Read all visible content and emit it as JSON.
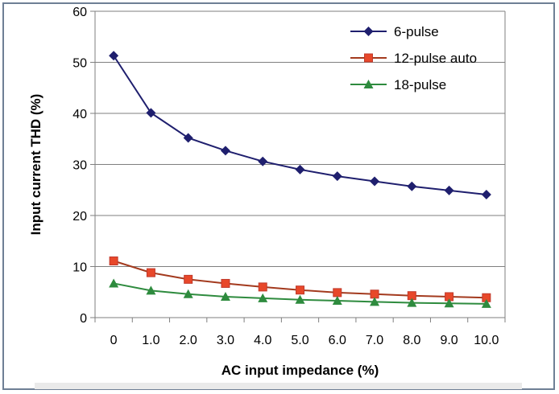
{
  "chart_data": {
    "type": "line",
    "xlabel": "AC input impedance (%)",
    "ylabel": "Input current THD (%)",
    "ylim": [
      0,
      60
    ],
    "yticks": [
      "0",
      "10",
      "20",
      "30",
      "40",
      "50",
      "60"
    ],
    "categories": [
      "0",
      "1.0",
      "2.0",
      "3.0",
      "4.0",
      "5.0",
      "6.0",
      "7.0",
      "8.0",
      "9.0",
      "10.0"
    ],
    "grid": "horizontal",
    "legend_position": "top-right",
    "series": [
      {
        "name": "6-pulse",
        "color": "#1f1f6e",
        "marker": "diamond",
        "values": [
          51.3,
          40.1,
          35.2,
          32.7,
          30.6,
          29.0,
          27.7,
          26.7,
          25.7,
          24.9,
          24.1
        ]
      },
      {
        "name": "12-pulse auto",
        "color": "#e8482a",
        "marker": "square",
        "values": [
          11.1,
          8.8,
          7.5,
          6.7,
          6.0,
          5.4,
          4.9,
          4.6,
          4.3,
          4.1,
          3.9
        ]
      },
      {
        "name": "18-pulse",
        "color": "#2e8b3e",
        "marker": "triangle",
        "values": [
          6.7,
          5.3,
          4.6,
          4.1,
          3.8,
          3.5,
          3.3,
          3.1,
          2.9,
          2.8,
          2.7
        ]
      }
    ]
  }
}
